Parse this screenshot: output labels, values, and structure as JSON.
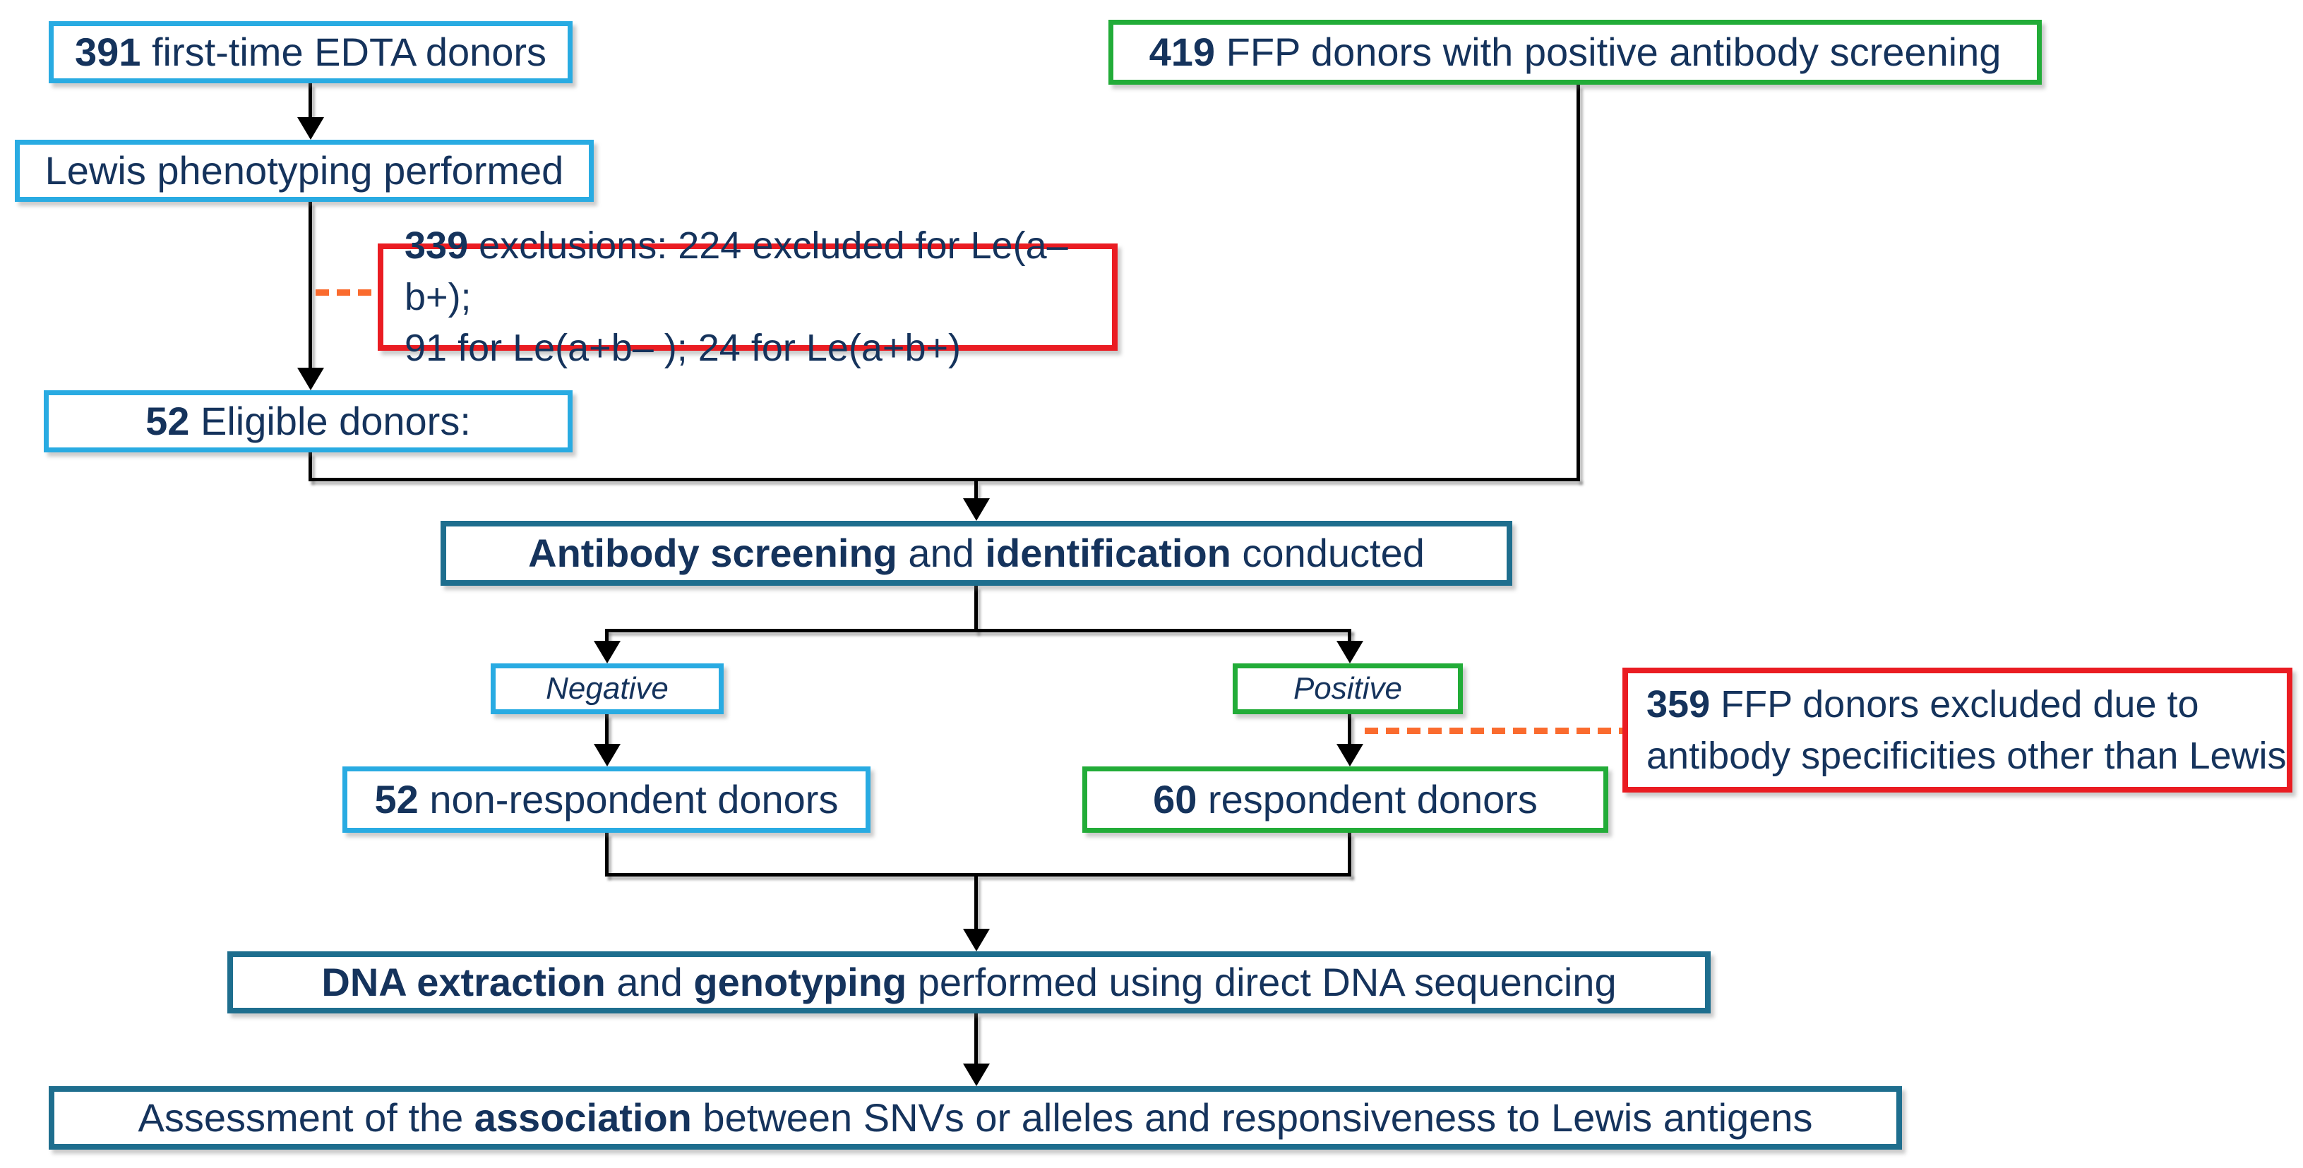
{
  "colors": {
    "cyan": "#29abe2",
    "green": "#22ac38",
    "red": "#ea1c22",
    "teal": "#1e6e8e",
    "navy": "#15335c",
    "orange": "#fa6b2e",
    "line": "#000000"
  },
  "flowchart": {
    "boxes": {
      "edta": {
        "segments": [
          {
            "t": "391",
            "b": true
          },
          {
            "t": " first-time EDTA donors"
          }
        ]
      },
      "ffp": {
        "segments": [
          {
            "t": "419",
            "b": true
          },
          {
            "t": " FFP donors with positive antibody screening"
          }
        ]
      },
      "lewis": {
        "segments": [
          {
            "t": "Lewis phenotyping performed"
          }
        ]
      },
      "exclusions_phenotype": {
        "line1": [
          {
            "t": "339",
            "b": true
          },
          {
            "t": " exclusions: 224 excluded for Le(a– b+);"
          }
        ],
        "line2": [
          {
            "t": "91 for Le(a+b– ); 24 for Le(a+b+)"
          }
        ]
      },
      "eligible": {
        "segments": [
          {
            "t": "52",
            "b": true
          },
          {
            "t": " Eligible donors:"
          }
        ]
      },
      "antibody": {
        "segments": [
          {
            "t": "Antibody screening",
            "b": true
          },
          {
            "t": " and "
          },
          {
            "t": "identification",
            "b": true
          },
          {
            "t": " conducted"
          }
        ]
      },
      "negative": {
        "segments": [
          {
            "t": "Negative",
            "i": true
          }
        ]
      },
      "positive": {
        "segments": [
          {
            "t": "Positive",
            "i": true
          }
        ]
      },
      "non_respondent": {
        "segments": [
          {
            "t": "52",
            "b": true
          },
          {
            "t": " non-respondent donors"
          }
        ]
      },
      "respondent": {
        "segments": [
          {
            "t": "60",
            "b": true
          },
          {
            "t": " respondent donors"
          }
        ]
      },
      "exclusions_ffp": {
        "line1": [
          {
            "t": "359",
            "b": true
          },
          {
            "t": " FFP donors excluded due to"
          }
        ],
        "line2": [
          {
            "t": "antibody specificities other than Lewis"
          }
        ]
      },
      "dna": {
        "segments": [
          {
            "t": "DNA extraction",
            "b": true
          },
          {
            "t": " and "
          },
          {
            "t": "genotyping",
            "b": true
          },
          {
            "t": " performed using direct DNA sequencing"
          }
        ]
      },
      "assessment": {
        "segments": [
          {
            "t": "Assessment of the "
          },
          {
            "t": "association",
            "b": true
          },
          {
            "t": " between SNVs or alleles and responsiveness to Lewis antigens"
          }
        ]
      }
    }
  }
}
